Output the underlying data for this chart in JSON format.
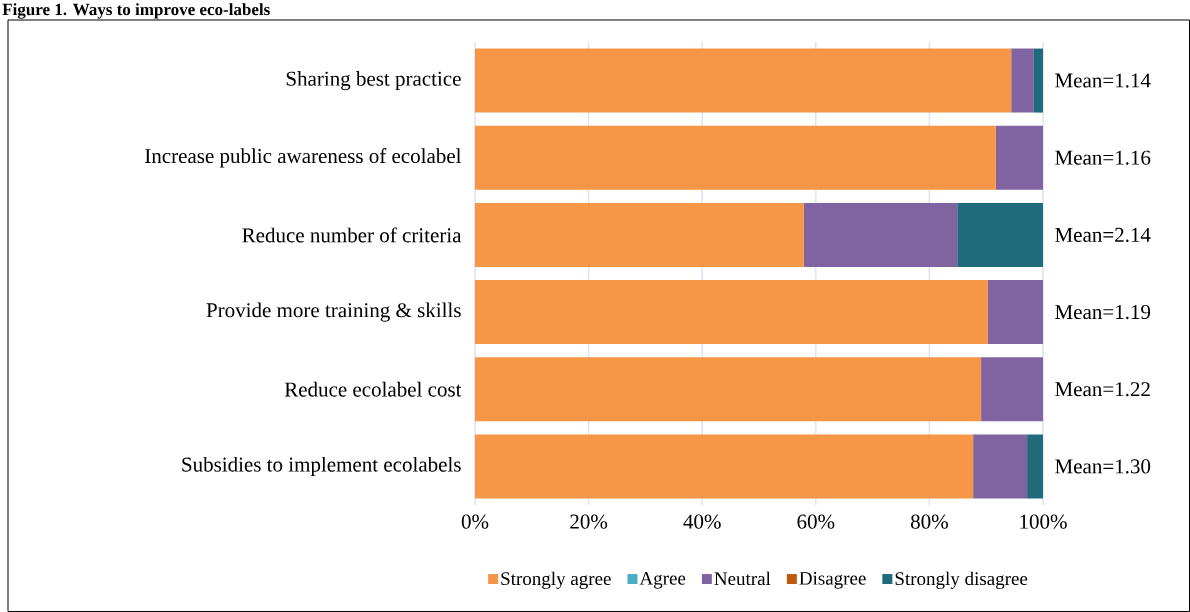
{
  "chart_data": {
    "type": "bar",
    "orientation": "horizontal",
    "stacked": true,
    "title": "Figure 1. Ways to improve eco-labels",
    "categories": [
      "Sharing best practice",
      "Increase public awareness of ecolabel",
      "Reduce number of criteria",
      "Provide more training & skills",
      "Reduce ecolabel cost",
      "Subsidies to implement ecolabels"
    ],
    "series": [
      {
        "name": "Strongly agree",
        "color": "#f79646",
        "values": [
          94.4,
          91.7,
          57.9,
          90.3,
          89.1,
          87.7
        ]
      },
      {
        "name": "Agree",
        "color": "#4bacc6",
        "values": [
          0,
          0,
          0,
          0,
          0,
          0
        ]
      },
      {
        "name": "Neutral",
        "color": "#8064a2",
        "values": [
          4.0,
          8.3,
          27.0,
          9.7,
          10.9,
          9.5
        ]
      },
      {
        "name": "Disagree",
        "color": "#c0580f",
        "values": [
          0,
          0,
          0,
          0,
          0,
          0
        ]
      },
      {
        "name": "Strongly disagree",
        "color": "#1f6b7c",
        "values": [
          1.6,
          0,
          15.1,
          0,
          0,
          2.8
        ]
      }
    ],
    "xlim": [
      0,
      100
    ],
    "xticks": [
      {
        "value": 0,
        "label": "0%"
      },
      {
        "value": 20,
        "label": "20%"
      },
      {
        "value": 40,
        "label": "40%"
      },
      {
        "value": 60,
        "label": "60%"
      },
      {
        "value": 80,
        "label": "80%"
      },
      {
        "value": 100,
        "label": "100%"
      }
    ],
    "grid": "x",
    "legend": "bottom",
    "annotations": [
      "Mean=1.14",
      "Mean=1.16",
      "Mean=2.14",
      "Mean=1.19",
      "Mean=1.22",
      "Mean=1.30"
    ]
  }
}
